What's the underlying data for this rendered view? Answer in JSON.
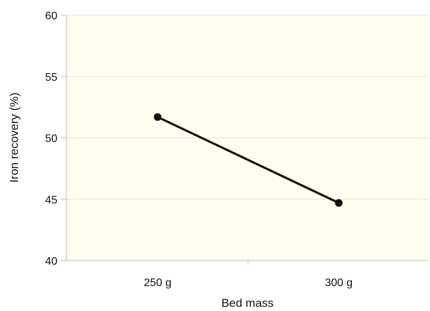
{
  "chart_data": {
    "type": "line",
    "categories": [
      "250 g",
      "300 g"
    ],
    "series": [
      {
        "values": [
          51.7,
          44.7
        ]
      }
    ],
    "xlabel": "Bed mass",
    "ylabel": "Iron recovery (%)",
    "ylim": [
      40,
      60
    ],
    "yticks": [
      40,
      45,
      50,
      55,
      60
    ],
    "grid": "horizontal",
    "colors": {
      "plot_background": "#fffdf0",
      "gridline": "#e4e4e4",
      "axis": "#bdbdbd",
      "line": "#111111"
    }
  }
}
